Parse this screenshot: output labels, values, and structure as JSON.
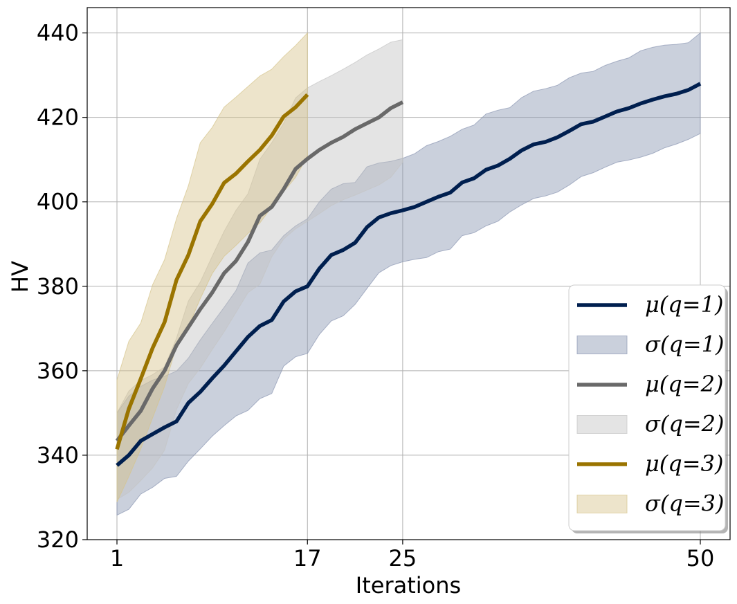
{
  "chart_data": {
    "type": "line",
    "title": "",
    "xlabel": "Iterations",
    "ylabel": "HV",
    "xlim": [
      -1.5,
      52.5
    ],
    "ylim": [
      320,
      446
    ],
    "xticks": [
      1,
      17,
      25,
      50
    ],
    "xtick_labels": [
      "1",
      "17",
      "25",
      "50"
    ],
    "yticks": [
      320,
      340,
      360,
      380,
      400,
      420,
      440
    ],
    "ytick_labels": [
      "320",
      "340",
      "360",
      "380",
      "400",
      "420",
      "440"
    ],
    "grid": true,
    "legend_position": "lower-right",
    "series": [
      {
        "name": "q=1",
        "mean_label": "μ(q=1)",
        "std_label": "σ(q=1)",
        "color": "#001f4f",
        "fill_color": "#8a96b2",
        "x": [
          1,
          2,
          3,
          4,
          5,
          6,
          7,
          8,
          9,
          10,
          11,
          12,
          13,
          14,
          15,
          16,
          17,
          18,
          19,
          20,
          21,
          22,
          23,
          24,
          25,
          26,
          27,
          28,
          29,
          30,
          31,
          32,
          33,
          34,
          35,
          36,
          37,
          38,
          39,
          40,
          41,
          42,
          43,
          44,
          45,
          46,
          47,
          48,
          49,
          50
        ],
        "mean": [
          337.6,
          340.0,
          343.4,
          345.0,
          346.6,
          348.0,
          352.4,
          355.0,
          358.2,
          361.2,
          364.6,
          368.0,
          370.6,
          372.0,
          376.4,
          378.8,
          380.0,
          384.2,
          387.4,
          388.6,
          390.3,
          394.0,
          396.3,
          397.3,
          398.0,
          398.8,
          400.0,
          401.2,
          402.2,
          404.6,
          405.6,
          407.6,
          408.6,
          410.2,
          412.2,
          413.6,
          414.2,
          415.3,
          416.8,
          418.4,
          419.0,
          420.2,
          421.4,
          422.2,
          423.3,
          424.2,
          425.0,
          425.6,
          426.5,
          428.0
        ],
        "lower": [
          325.8,
          327.2,
          330.8,
          332.4,
          334.5,
          335.0,
          338.6,
          341.5,
          344.5,
          347.0,
          349.3,
          350.6,
          353.4,
          354.6,
          361.1,
          363.3,
          364.1,
          368.6,
          371.8,
          373.0,
          375.7,
          379.5,
          383.2,
          384.9,
          385.8,
          386.4,
          386.8,
          388.2,
          388.8,
          392.0,
          392.7,
          394.3,
          395.4,
          397.6,
          399.3,
          400.8,
          401.4,
          402.3,
          404.0,
          406.0,
          406.9,
          408.2,
          409.4,
          409.9,
          410.6,
          411.5,
          412.8,
          413.7,
          414.8,
          416.2
        ],
        "upper": [
          350.0,
          354.0,
          356.3,
          357.8,
          358.7,
          359.9,
          363.0,
          367.3,
          371.2,
          375.0,
          379.0,
          385.5,
          387.9,
          388.6,
          392.0,
          394.3,
          396.0,
          400.0,
          403.0,
          404.3,
          404.6,
          408.3,
          409.2,
          409.6,
          410.3,
          411.4,
          413.3,
          414.3,
          415.5,
          417.2,
          418.2,
          420.8,
          421.7,
          422.3,
          424.7,
          426.2,
          426.8,
          427.6,
          429.4,
          430.5,
          430.9,
          432.3,
          433.3,
          434.1,
          435.8,
          436.6,
          437.1,
          437.3,
          437.7,
          440.0
        ]
      },
      {
        "name": "q=2",
        "mean_label": "μ(q=2)",
        "std_label": "σ(q=2)",
        "color": "#696969",
        "fill_color": "#c4c4c4",
        "x": [
          1,
          2,
          3,
          4,
          5,
          6,
          7,
          8,
          9,
          10,
          11,
          12,
          13,
          14,
          15,
          16,
          17,
          18,
          19,
          20,
          21,
          22,
          23,
          24,
          25
        ],
        "mean": [
          343.4,
          347.0,
          350.5,
          355.8,
          360.0,
          366.0,
          370.3,
          374.6,
          378.5,
          383.1,
          386.0,
          390.5,
          396.7,
          398.8,
          403.0,
          407.8,
          410.2,
          412.3,
          414.0,
          415.4,
          417.2,
          418.6,
          420.0,
          422.2,
          423.6
        ],
        "lower": [
          329.5,
          331.2,
          334.0,
          337.0,
          341.2,
          350.8,
          357.0,
          360.6,
          365.0,
          369.2,
          373.8,
          378.5,
          380.5,
          387.0,
          391.2,
          393.6,
          395.4,
          397.2,
          399.1,
          400.5,
          401.6,
          402.8,
          404.0,
          405.8,
          409.4
        ],
        "upper": [
          350.0,
          355.2,
          357.7,
          359.1,
          360.9,
          367.7,
          376.5,
          381.0,
          387.1,
          393.0,
          398.0,
          401.9,
          410.1,
          414.0,
          418.6,
          424.6,
          427.0,
          428.5,
          429.9,
          431.4,
          433.0,
          434.8,
          436.2,
          437.8,
          438.4
        ]
      },
      {
        "name": "q=3",
        "mean_label": "μ(q=3)",
        "std_label": "σ(q=3)",
        "color": "#9a7400",
        "fill_color": "#d6c48c",
        "x": [
          1,
          2,
          3,
          4,
          5,
          6,
          7,
          8,
          9,
          10,
          11,
          12,
          13,
          14,
          15,
          16,
          17
        ],
        "mean": [
          341.4,
          351.0,
          358.1,
          365.4,
          371.5,
          381.5,
          387.4,
          395.4,
          399.5,
          404.5,
          406.7,
          409.6,
          412.3,
          415.7,
          420.2,
          422.4,
          425.4
        ],
        "lower": [
          328.9,
          335.0,
          341.5,
          348.9,
          356.3,
          365.9,
          370.4,
          377.1,
          383.0,
          387.1,
          389.7,
          392.5,
          395.0,
          398.8,
          402.4,
          405.8,
          410.8
        ],
        "upper": [
          357.8,
          367.0,
          371.3,
          380.4,
          386.3,
          396.0,
          403.8,
          414.0,
          417.6,
          422.4,
          424.8,
          427.3,
          429.8,
          431.4,
          434.4,
          437.0,
          440.0
        ]
      }
    ]
  }
}
